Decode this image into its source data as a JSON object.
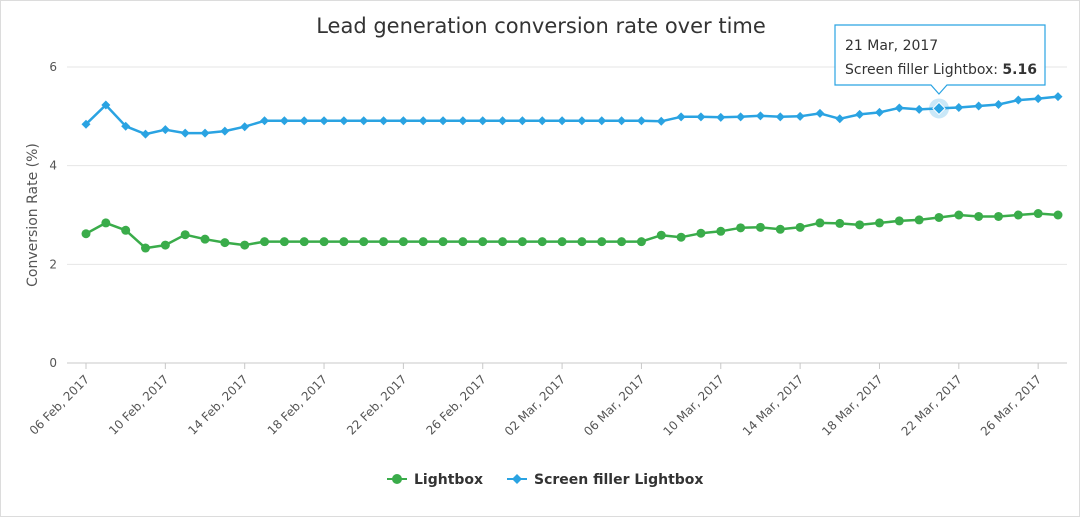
{
  "chart_data": {
    "type": "line",
    "title": "Lead generation conversion rate over time",
    "xlabel": "",
    "ylabel": "Conversion Rate (%)",
    "ylim": [
      0,
      6
    ],
    "yticks": [
      "0",
      "2",
      "4",
      "6"
    ],
    "grid": true,
    "legend_position": "bottom-center",
    "x": [
      "06 Feb, 2017",
      "07 Feb, 2017",
      "08 Feb, 2017",
      "09 Feb, 2017",
      "10 Feb, 2017",
      "11 Feb, 2017",
      "12 Feb, 2017",
      "13 Feb, 2017",
      "14 Feb, 2017",
      "15 Feb, 2017",
      "16 Feb, 2017",
      "17 Feb, 2017",
      "18 Feb, 2017",
      "19 Feb, 2017",
      "20 Feb, 2017",
      "21 Feb, 2017",
      "22 Feb, 2017",
      "23 Feb, 2017",
      "24 Feb, 2017",
      "25 Feb, 2017",
      "26 Feb, 2017",
      "27 Feb, 2017",
      "28 Feb, 2017",
      "01 Mar, 2017",
      "02 Mar, 2017",
      "03 Mar, 2017",
      "04 Mar, 2017",
      "05 Mar, 2017",
      "06 Mar, 2017",
      "07 Mar, 2017",
      "08 Mar, 2017",
      "09 Mar, 2017",
      "10 Mar, 2017",
      "11 Mar, 2017",
      "12 Mar, 2017",
      "13 Mar, 2017",
      "14 Mar, 2017",
      "15 Mar, 2017",
      "16 Mar, 2017",
      "17 Mar, 2017",
      "18 Mar, 2017",
      "19 Mar, 2017",
      "20 Mar, 2017",
      "21 Mar, 2017",
      "22 Mar, 2017",
      "23 Mar, 2017",
      "24 Mar, 2017",
      "25 Mar, 2017",
      "26 Mar, 2017",
      "27 Mar, 2017"
    ],
    "xtick_labels": [
      "06 Feb, 2017",
      "10 Feb, 2017",
      "14 Feb, 2017",
      "18 Feb, 2017",
      "22 Feb, 2017",
      "26 Feb, 2017",
      "02 Mar, 2017",
      "06 Mar, 2017",
      "10 Mar, 2017",
      "14 Mar, 2017",
      "18 Mar, 2017",
      "22 Mar, 2017",
      "26 Mar, 2017"
    ],
    "xtick_every": 4,
    "series": [
      {
        "name": "Lightbox",
        "color": "#3aac4a",
        "marker": "circle",
        "values": [
          2.62,
          2.84,
          2.69,
          2.33,
          2.39,
          2.6,
          2.51,
          2.44,
          2.39,
          2.46,
          2.46,
          2.46,
          2.46,
          2.46,
          2.46,
          2.46,
          2.46,
          2.46,
          2.46,
          2.46,
          2.46,
          2.46,
          2.46,
          2.46,
          2.46,
          2.46,
          2.46,
          2.46,
          2.46,
          2.59,
          2.55,
          2.63,
          2.67,
          2.74,
          2.75,
          2.71,
          2.75,
          2.84,
          2.83,
          2.8,
          2.84,
          2.88,
          2.9,
          2.95,
          3.0,
          2.97,
          2.97,
          3.0,
          3.03,
          3.0
        ]
      },
      {
        "name": "Screen filler Lightbox",
        "color": "#2aa3e2",
        "marker": "diamond",
        "values": [
          4.84,
          5.23,
          4.8,
          4.64,
          4.73,
          4.66,
          4.66,
          4.7,
          4.79,
          4.91,
          4.91,
          4.91,
          4.91,
          4.91,
          4.91,
          4.91,
          4.91,
          4.91,
          4.91,
          4.91,
          4.91,
          4.91,
          4.91,
          4.91,
          4.91,
          4.91,
          4.91,
          4.91,
          4.91,
          4.9,
          4.99,
          4.99,
          4.98,
          4.99,
          5.01,
          4.99,
          5.0,
          5.06,
          4.95,
          5.04,
          5.08,
          5.17,
          5.14,
          5.16,
          5.18,
          5.21,
          5.24,
          5.33,
          5.36,
          5.4
        ]
      }
    ],
    "tooltip": {
      "date": "21 Mar, 2017",
      "series_label": "Screen filler Lightbox",
      "value": "5.16",
      "series_index": 1,
      "point_index": 43
    }
  }
}
